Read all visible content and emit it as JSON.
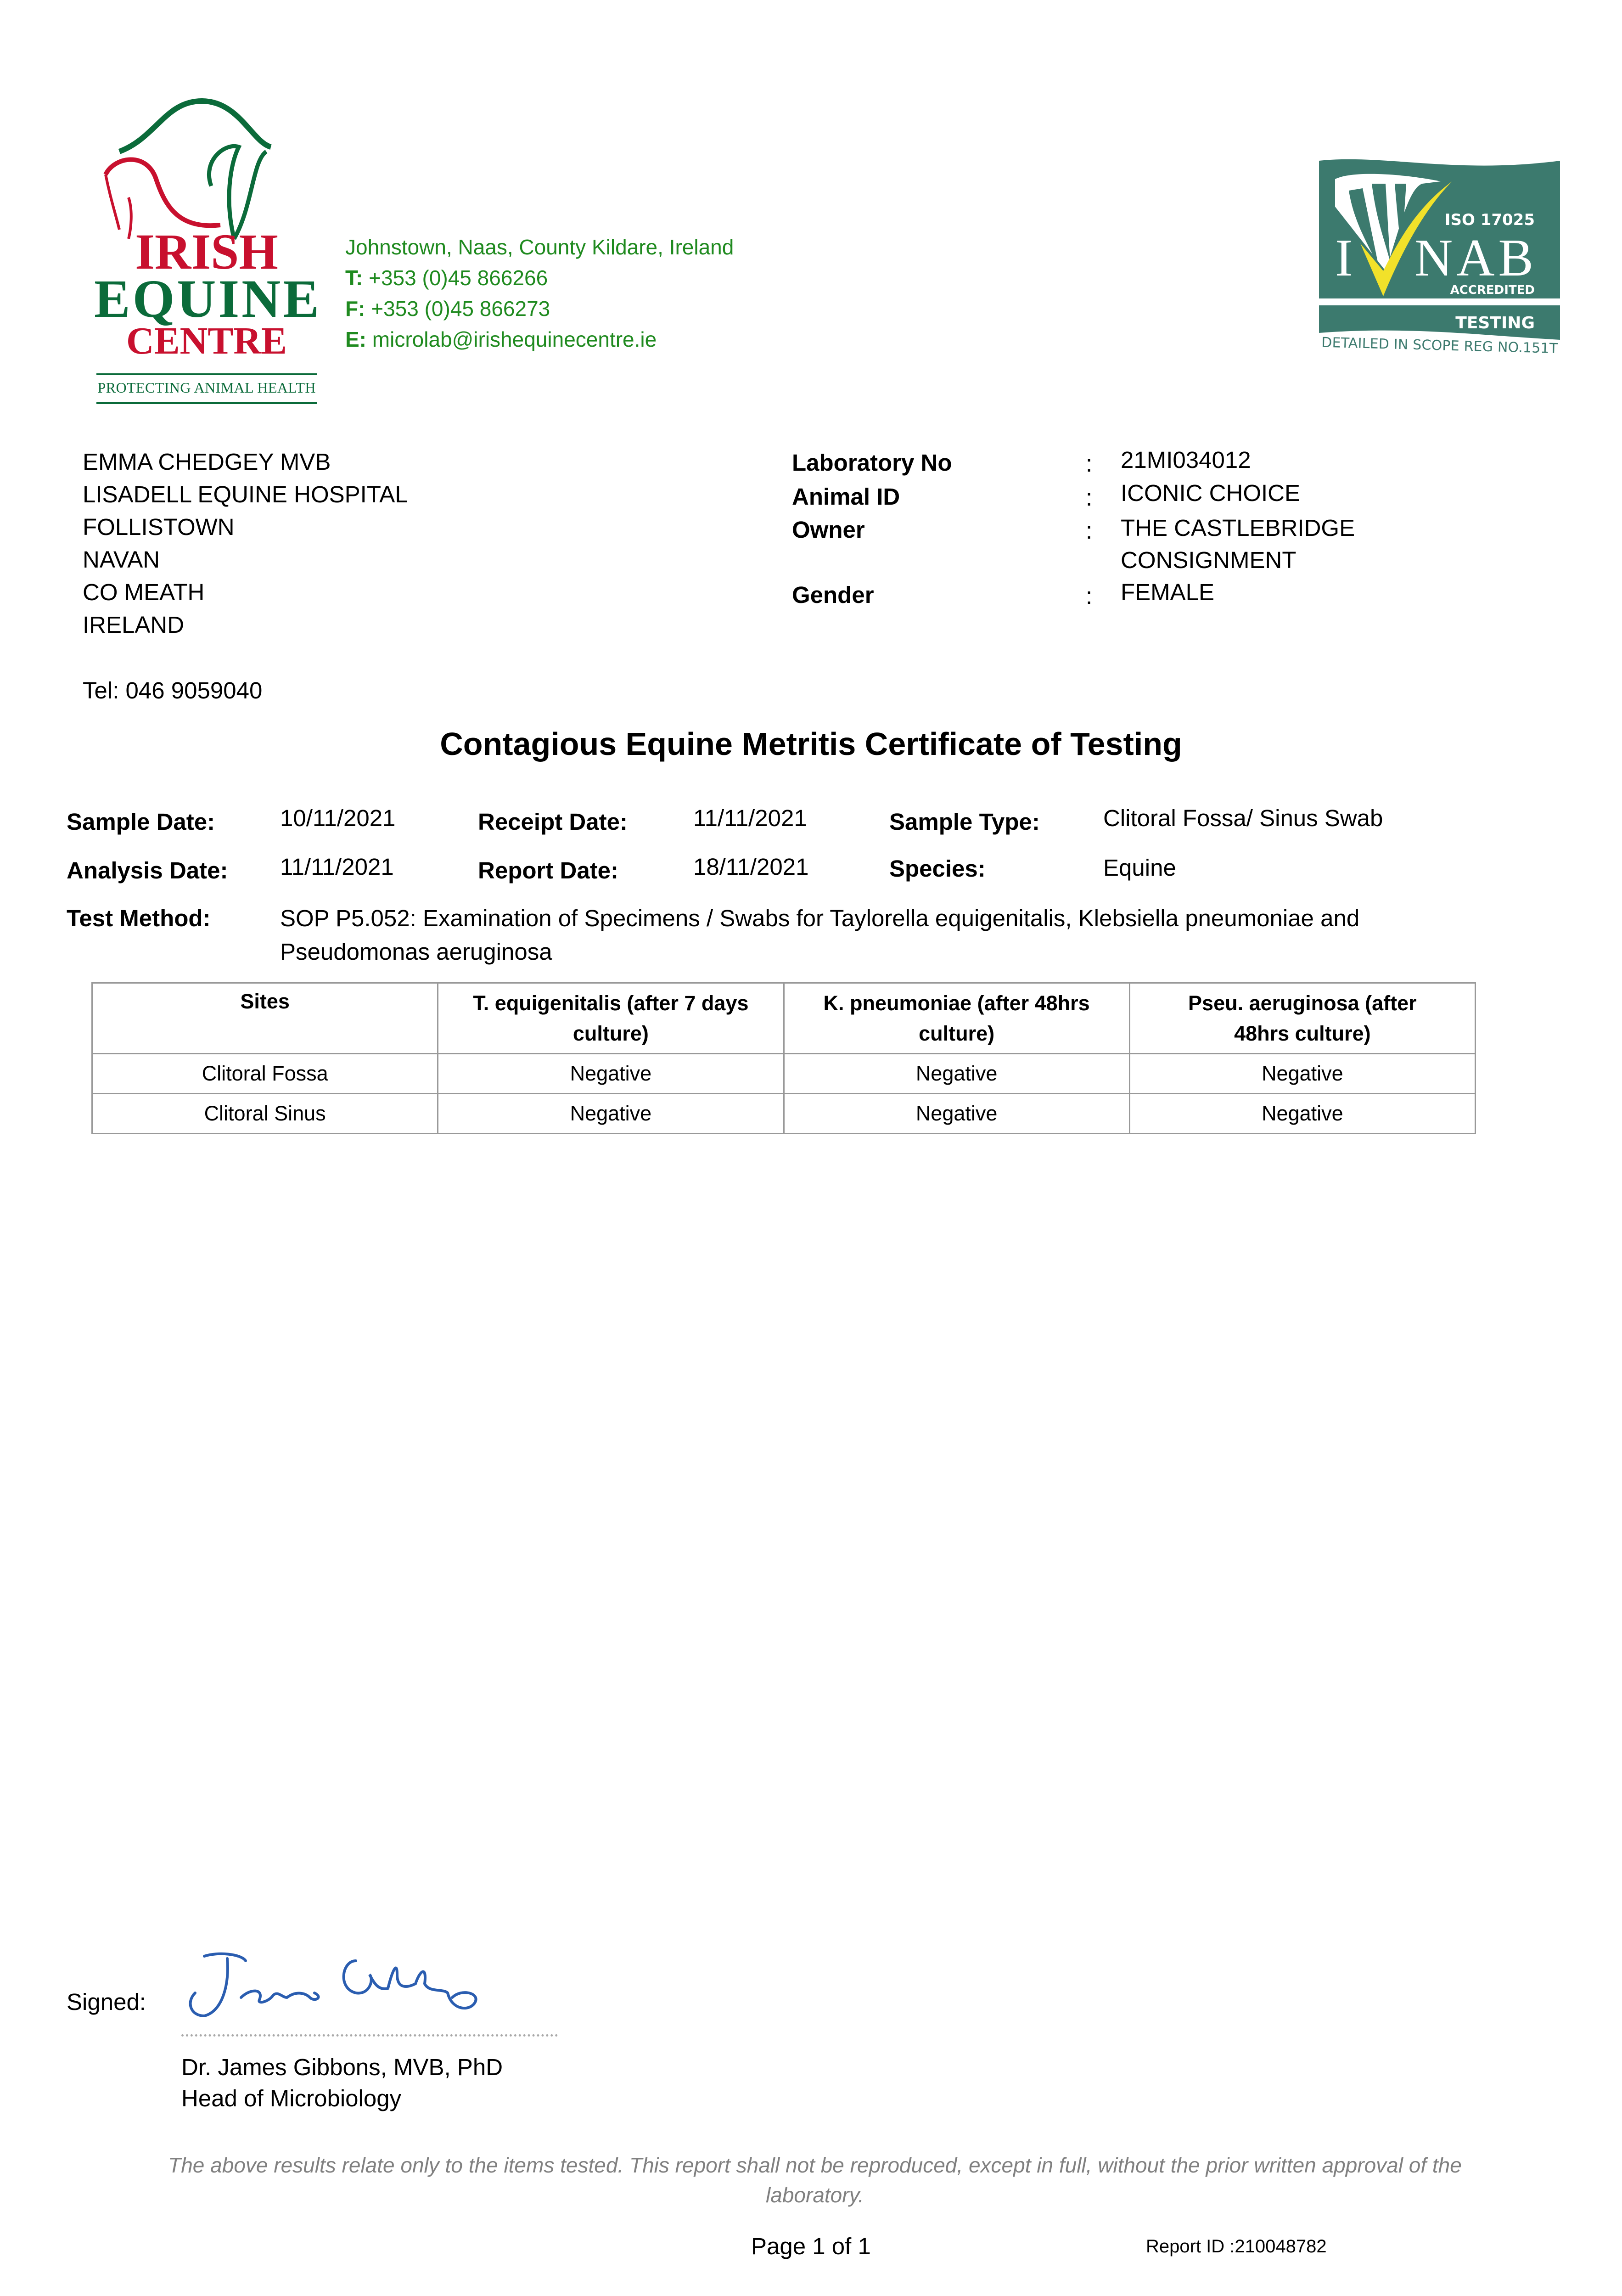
{
  "logo": {
    "name_lines": [
      "IRISH",
      "EQUINE",
      "CENTRE"
    ],
    "tagline": "PROTECTING ANIMAL HEALTH",
    "colors": {
      "red": "#c8102e",
      "green": "#0b6b3a"
    }
  },
  "contact": {
    "address": "Johnstown, Naas, County Kildare, Ireland",
    "phone_label": "T:",
    "phone": "+353 (0)45 866266",
    "fax_label": "F:",
    "fax": "+353 (0)45 866273",
    "email_label": "E:",
    "email": "microlab@irishequinecentre.ie",
    "color": "#1f8a1f"
  },
  "accreditation": {
    "standard": "ISO 17025",
    "body": "INAB",
    "status": "ACCREDITED",
    "type": "TESTING",
    "scope": "DETAILED IN SCOPE REG NO.151T",
    "color": "#3c7a6e"
  },
  "recipient": {
    "lines": [
      "EMMA CHEDGEY MVB",
      "LISADELL EQUINE HOSPITAL",
      "FOLLISTOWN",
      "NAVAN",
      "CO MEATH",
      "IRELAND"
    ],
    "tel": "Tel: 046 9059040"
  },
  "lab_info": [
    {
      "label": "Laboratory No",
      "value": "21MI034012"
    },
    {
      "label": "Animal ID",
      "value": "ICONIC CHOICE"
    },
    {
      "label": "Owner",
      "value": "THE CASTLEBRIDGE",
      "value2": "CONSIGNMENT"
    },
    {
      "label": "Gender",
      "value": "FEMALE"
    }
  ],
  "separator": ":",
  "title": "Contagious Equine Metritis Certificate of Testing",
  "details": {
    "sample_date_label": "Sample Date:",
    "sample_date": "10/11/2021",
    "receipt_date_label": "Receipt Date:",
    "receipt_date": "11/11/2021",
    "sample_type_label": "Sample Type:",
    "sample_type": "Clitoral Fossa/ Sinus Swab",
    "analysis_date_label": "Analysis Date:",
    "analysis_date": "11/11/2021",
    "report_date_label": "Report Date:",
    "report_date": "18/11/2021",
    "species_label": "Species:",
    "species": "Equine",
    "test_method_label": "Test Method:",
    "test_method_1": "SOP P5.052: Examination of Specimens / Swabs for Taylorella equigenitalis, Klebsiella pneumoniae and",
    "test_method_2": "Pseudomonas aeruginosa"
  },
  "results": {
    "headers": [
      [
        "Sites"
      ],
      [
        "T. equigenitalis (after 7 days",
        "culture)"
      ],
      [
        "K. pneumoniae (after 48hrs",
        "culture)"
      ],
      [
        "Pseu. aeruginosa (after",
        "48hrs culture)"
      ]
    ],
    "rows": [
      [
        "Clitoral Fossa",
        "Negative",
        "Negative",
        "Negative"
      ],
      [
        "Clitoral Sinus",
        "Negative",
        "Negative",
        "Negative"
      ]
    ]
  },
  "signature": {
    "label": "Signed:",
    "name": "Dr. James Gibbons, MVB, PhD",
    "role": "Head of Microbiology",
    "ink_color": "#2a5db0"
  },
  "footer": {
    "disclaimer": "The above results relate only to the items tested. This report shall not be reproduced, except in full, without the prior written approval of the laboratory.",
    "page": "Page 1 of 1",
    "report_id": "Report ID :210048782"
  }
}
